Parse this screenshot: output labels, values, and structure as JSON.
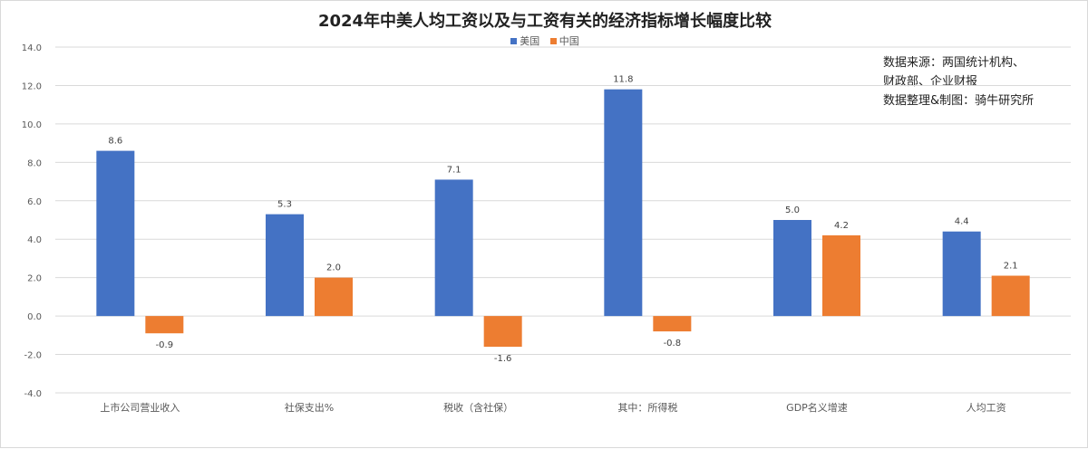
{
  "chart_data": {
    "type": "bar",
    "title": "2024年中美人均工资以及与工资有关的经济指标增长幅度比较",
    "categories": [
      "上市公司营业收入",
      "社保支出%",
      "税收（含社保）",
      "其中：所得税",
      "GDP名义增速",
      "人均工资"
    ],
    "series": [
      {
        "name": "美国",
        "color": "#4472C4",
        "values": [
          8.6,
          5.3,
          7.1,
          11.8,
          5.0,
          4.4
        ]
      },
      {
        "name": "中国",
        "color": "#ED7D31",
        "values": [
          -0.9,
          2.0,
          -1.6,
          -0.8,
          4.2,
          2.1
        ]
      }
    ],
    "ylim": [
      -4.0,
      14.0
    ],
    "y_ticks": [
      "14.0",
      "12.0",
      "10.0",
      "8.0",
      "6.0",
      "4.0",
      "2.0",
      "0.0",
      "-2.0",
      "-4.0"
    ],
    "grid": true,
    "legend_position": "top-center",
    "data_labels": [
      [
        "8.6",
        "5.3",
        "7.1",
        "11.8",
        "5.0",
        "4.4"
      ],
      [
        "-0.9",
        "2.0",
        "-1.6",
        "-0.8",
        "4.2",
        "2.1"
      ]
    ],
    "source_note": [
      "数据来源：两国统计机构、",
      "财政部、企业财报",
      "数据整理&制图：骑牛研究所"
    ]
  }
}
